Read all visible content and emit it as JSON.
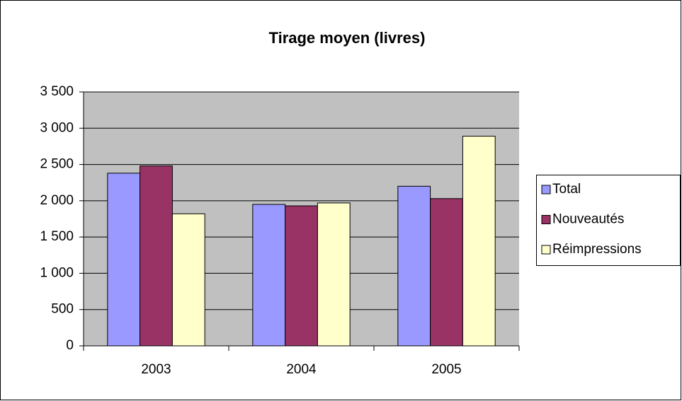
{
  "chart_data": {
    "type": "bar",
    "title": "Tirage moyen (livres)",
    "categories": [
      "2003",
      "2004",
      "2005"
    ],
    "series": [
      {
        "name": "Total",
        "color": "#9999ff",
        "values": [
          2380,
          1950,
          2200
        ]
      },
      {
        "name": "Nouveautés",
        "color": "#993366",
        "values": [
          2480,
          1930,
          2030
        ]
      },
      {
        "name": "Réimpressions",
        "color": "#ffffcc",
        "values": [
          1820,
          1970,
          2890
        ]
      }
    ],
    "ylim": [
      0,
      3500
    ],
    "yticks": [
      0,
      500,
      {
        "value": 1000,
        "label": "1 000"
      },
      {
        "value": 1500,
        "label": "1 500"
      },
      {
        "value": 2000,
        "label": "2 000"
      },
      {
        "value": 2500,
        "label": "2 500"
      },
      {
        "value": 3000,
        "label": "3 000"
      },
      {
        "value": 3500,
        "label": "3 500"
      }
    ],
    "grid": true,
    "legend": "right"
  }
}
